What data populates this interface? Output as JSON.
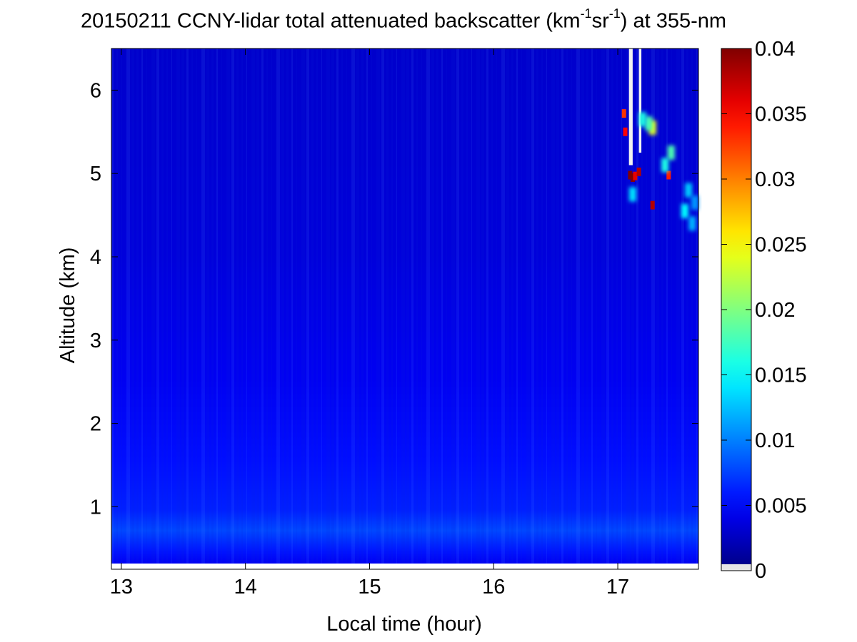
{
  "chart_data": {
    "type": "heatmap",
    "title": {
      "prefix": "20150211 CCNY-lidar total attenuated backscatter (km",
      "sup1": "-1",
      "mid": "sr",
      "sup2": "-1",
      "suffix": ") at 355-nm"
    },
    "xlabel": "Local time (hour)",
    "ylabel": "Altitude (km)",
    "xlim": [
      12.92,
      17.65
    ],
    "ylim": [
      0.25,
      6.5
    ],
    "x_ticks": [
      13,
      14,
      15,
      16,
      17
    ],
    "y_ticks": [
      1,
      2,
      3,
      4,
      5,
      6
    ],
    "colorbar": {
      "colormap": "jet",
      "range": [
        0,
        0.04
      ],
      "ticks": [
        "0",
        "0.005",
        "0.01",
        "0.015",
        "0.02",
        "0.025",
        "0.03",
        "0.035",
        "0.04"
      ],
      "tick_values": [
        0,
        0.005,
        0.01,
        0.015,
        0.02,
        0.025,
        0.03,
        0.035,
        0.04
      ]
    },
    "background_profile": [
      {
        "alt": 0.25,
        "value": 0.0045
      },
      {
        "alt": 0.4,
        "value": 0.0058
      },
      {
        "alt": 0.65,
        "value": 0.0078
      },
      {
        "alt": 0.9,
        "value": 0.0062
      },
      {
        "alt": 1.5,
        "value": 0.0055
      },
      {
        "alt": 2.5,
        "value": 0.0045
      },
      {
        "alt": 4.0,
        "value": 0.0036
      },
      {
        "alt": 6.5,
        "value": 0.003
      }
    ],
    "missing_data": [
      {
        "time_start": 17.09,
        "time_end": 17.12,
        "alt_start": 5.1,
        "alt_end": 6.5
      },
      {
        "time_start": 17.17,
        "time_end": 17.19,
        "alt_start": 5.25,
        "alt_end": 6.5
      }
    ],
    "features": [
      {
        "time": 17.1,
        "alt": 4.98,
        "value": 0.04
      },
      {
        "time": 17.12,
        "alt": 4.95,
        "value": 0.04
      },
      {
        "time": 17.14,
        "alt": 4.97,
        "value": 0.036
      },
      {
        "time": 17.17,
        "alt": 5.02,
        "value": 0.038
      },
      {
        "time": 17.06,
        "alt": 5.5,
        "value": 0.035
      },
      {
        "time": 17.05,
        "alt": 5.72,
        "value": 0.033
      },
      {
        "time": 17.28,
        "alt": 4.62,
        "value": 0.038
      },
      {
        "time": 17.28,
        "alt": 5.55,
        "value": 0.024
      },
      {
        "time": 17.25,
        "alt": 5.6,
        "value": 0.018
      },
      {
        "time": 17.41,
        "alt": 4.98,
        "value": 0.034
      },
      {
        "time": 17.43,
        "alt": 5.25,
        "value": 0.018
      },
      {
        "time": 17.38,
        "alt": 5.1,
        "value": 0.016
      },
      {
        "time": 17.2,
        "alt": 5.65,
        "value": 0.016
      },
      {
        "time": 17.12,
        "alt": 4.75,
        "value": 0.014
      },
      {
        "time": 17.54,
        "alt": 4.55,
        "value": 0.015
      },
      {
        "time": 17.57,
        "alt": 4.8,
        "value": 0.013
      },
      {
        "time": 17.6,
        "alt": 4.4,
        "value": 0.012
      },
      {
        "time": 17.62,
        "alt": 4.65,
        "value": 0.011
      }
    ]
  }
}
